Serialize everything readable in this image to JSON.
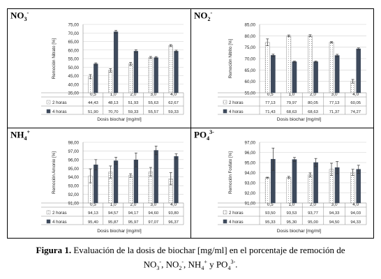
{
  "chart_data": [
    {
      "type": "bar",
      "panel_label": {
        "base": "NO",
        "sub": "3",
        "sup": "-"
      },
      "ylabel": "Remoción Nitrato [%]",
      "xlabel": "Dosis biochar [mg/ml]",
      "ylim": [
        35,
        75
      ],
      "yticks": [
        "35,00",
        "40,00",
        "45,00",
        "50,00",
        "55,00",
        "60,00",
        "65,00",
        "70,00",
        "75,00"
      ],
      "categories": [
        "0,5",
        "1,0",
        "2,0",
        "3,0",
        "4,0"
      ],
      "series": [
        {
          "name": "2 horas",
          "values": [
            44.43,
            48.13,
            51.93,
            55.63,
            62.67
          ],
          "labels": [
            "44,43",
            "48,13",
            "51,93",
            "55,63",
            "62,67"
          ]
        },
        {
          "name": "4 horas",
          "values": [
            51.9,
            70.7,
            59.33,
            55.57,
            59.33
          ],
          "labels": [
            "51,90",
            "70,70",
            "59,33",
            "55,57",
            "59,33"
          ]
        }
      ],
      "errors": [
        [
          1.2,
          1.0,
          0.8,
          0.6,
          0.5
        ],
        [
          0.6,
          0.8,
          0.8,
          0.6,
          0.6
        ]
      ],
      "grid": true
    },
    {
      "type": "bar",
      "panel_label": {
        "base": "NO",
        "sub": "2",
        "sup": "-"
      },
      "ylabel": "Remoción Nitrito [%]",
      "xlabel": "Dosis biochar [mg/ml]",
      "ylim": [
        55,
        85
      ],
      "yticks": [
        "55,00",
        "60,00",
        "65,00",
        "70,00",
        "75,00",
        "80,00",
        "85,00"
      ],
      "categories": [
        "0,5",
        "1,0",
        "2,0",
        "3,0",
        "4,0"
      ],
      "series": [
        {
          "name": "2 horas",
          "values": [
            77.13,
            79.97,
            80.05,
            77.13,
            60.05
          ],
          "labels": [
            "77,13",
            "79,97",
            "80,05",
            "77,13",
            "60,05"
          ]
        },
        {
          "name": "4 horas",
          "values": [
            71.43,
            68.63,
            68.63,
            71.37,
            74.27
          ],
          "labels": [
            "71,43",
            "68,63",
            "68,63",
            "71,37",
            "74,27"
          ]
        }
      ],
      "errors": [
        [
          1.5,
          0.4,
          0.4,
          0.3,
          0.8
        ],
        [
          0.5,
          0.3,
          0.3,
          0.5,
          0.4
        ]
      ],
      "grid": true
    },
    {
      "type": "bar",
      "panel_label": {
        "base": "NH",
        "sub": "4",
        "sup": "+"
      },
      "ylabel": "Remoción Amonio [%]",
      "xlabel": "Dosis biochar [mg/ml]",
      "ylim": [
        91,
        98
      ],
      "yticks": [
        "91,00",
        "92,00",
        "93,00",
        "94,00",
        "95,00",
        "96,00",
        "97,00",
        "98,00"
      ],
      "categories": [
        "0,5",
        "1,0",
        "2,0",
        "3,0",
        "4,0"
      ],
      "series": [
        {
          "name": "2 horas",
          "values": [
            94.13,
            94.57,
            94.17,
            94.6,
            93.8
          ],
          "labels": [
            "94,13",
            "94,57",
            "94,17",
            "94,60",
            "93,80"
          ]
        },
        {
          "name": "4 horas",
          "values": [
            95.4,
            95.87,
            95.97,
            97.07,
            96.37
          ],
          "labels": [
            "95,40",
            "95,87",
            "95,97",
            "97,07",
            "96,37"
          ]
        }
      ],
      "errors": [
        [
          0.8,
          0.7,
          0.2,
          0.5,
          0.7
        ],
        [
          0.6,
          0.4,
          0.8,
          0.5,
          0.3
        ]
      ],
      "grid": true
    },
    {
      "type": "bar",
      "panel_label": {
        "base": "PO",
        "sub": "4",
        "sup": "3-"
      },
      "ylabel": "Remoción Fosfato [%]",
      "xlabel": "Dosis biochar [mg/ml]",
      "ylim": [
        91,
        97
      ],
      "yticks": [
        "91,00",
        "92,00",
        "93,00",
        "94,00",
        "95,00",
        "96,00",
        "97,00"
      ],
      "categories": [
        "0,5",
        "1,0",
        "2,0",
        "3,0",
        "4,0"
      ],
      "series": [
        {
          "name": "2 horas",
          "values": [
            93.5,
            93.53,
            93.77,
            94.33,
            94.03
          ],
          "labels": [
            "93,50",
            "93,53",
            "93,77",
            "94,33",
            "94,03"
          ]
        },
        {
          "name": "4 horas",
          "values": [
            95.33,
            95.3,
            95.0,
            94.5,
            94.33
          ],
          "labels": [
            "95,33",
            "95,30",
            "95,00",
            "94,50",
            "94,33"
          ]
        }
      ],
      "errors": [
        [
          0.05,
          0.1,
          0.2,
          0.6,
          0.3
        ],
        [
          1.1,
          0.2,
          0.4,
          0.6,
          0.4
        ]
      ],
      "grid": true
    }
  ],
  "colors": {
    "series_2h_fill": "#ffffff",
    "series_2h_dots": "#8a8a8a",
    "series_4h_fill": "#3e4a5c",
    "grid": "#d0d0d0",
    "axis": "#888888",
    "text": "#222222"
  },
  "caption": {
    "label": "Figura 1.",
    "line1": "Evaluación de la dosis de biochar [mg/ml] en el porcentaje de remoción de",
    "line2_parts": [
      "NO",
      "3",
      "-",
      ", NO",
      "2",
      "-",
      ", NH",
      "4",
      "+",
      " y PO",
      "4",
      "3-",
      "."
    ]
  }
}
